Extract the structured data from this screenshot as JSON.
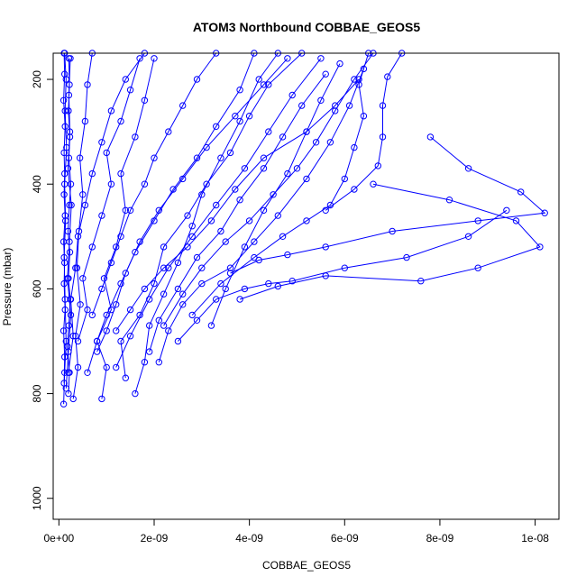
{
  "chart_data": {
    "type": "line",
    "title": "ATOM3 Northbound COBBAE_GEOS5",
    "xlabel": "COBBAE_GEOS5",
    "ylabel": "Pressure (mbar)",
    "xlim": [
      -1.2e-10,
      1.05e-08
    ],
    "ylim": [
      1040,
      150
    ],
    "y_reversed": true,
    "x_ticks": [
      0,
      2e-09,
      4e-09,
      6e-09,
      8e-09,
      1e-08
    ],
    "x_tick_labels": [
      "0e+00",
      "2e-09",
      "4e-09",
      "6e-09",
      "8e-09",
      "1e-08"
    ],
    "y_ticks": [
      200,
      400,
      600,
      800,
      1000
    ],
    "y_tick_labels": [
      "200",
      "400",
      "600",
      "800",
      "1000"
    ],
    "series_color": "#0000ff",
    "marker": "open-circle",
    "series": [
      {
        "points": [
          [
            1e-10,
            820
          ],
          [
            1.2e-10,
            760
          ],
          [
            1.5e-10,
            700
          ],
          [
            1.3e-10,
            620
          ],
          [
            1.1e-10,
            540
          ],
          [
            1.4e-10,
            470
          ],
          [
            1.2e-10,
            400
          ],
          [
            1.6e-10,
            330
          ],
          [
            1.3e-10,
            260
          ],
          [
            1.5e-10,
            200
          ],
          [
            1.2e-10,
            150
          ]
        ]
      },
      {
        "points": [
          [
            1.5e-10,
            790
          ],
          [
            2e-10,
            720
          ],
          [
            2.5e-10,
            650
          ],
          [
            1.8e-10,
            580
          ],
          [
            2.2e-10,
            510
          ],
          [
            2.6e-10,
            440
          ],
          [
            1.9e-10,
            370
          ],
          [
            2.3e-10,
            300
          ],
          [
            2.1e-10,
            230
          ],
          [
            2.4e-10,
            160
          ]
        ]
      },
      {
        "points": [
          [
            3e-10,
            810
          ],
          [
            4e-10,
            750
          ],
          [
            3.5e-10,
            690
          ],
          [
            4.5e-10,
            630
          ],
          [
            3.8e-10,
            560
          ],
          [
            4.2e-10,
            490
          ],
          [
            5e-10,
            420
          ],
          [
            4.4e-10,
            350
          ],
          [
            5.5e-10,
            280
          ],
          [
            6e-10,
            210
          ],
          [
            7e-10,
            150
          ]
        ]
      },
      {
        "points": [
          [
            9e-10,
            810
          ],
          [
            1e-09,
            750
          ],
          [
            8e-10,
            700
          ],
          [
            1.1e-09,
            640
          ],
          [
            9.5e-10,
            580
          ],
          [
            1.2e-09,
            520
          ],
          [
            1.4e-09,
            450
          ],
          [
            1.3e-09,
            380
          ],
          [
            1.6e-09,
            310
          ],
          [
            1.8e-09,
            240
          ],
          [
            2e-09,
            160
          ]
        ]
      },
      {
        "points": [
          [
            1.6e-09,
            800
          ],
          [
            1.8e-09,
            740
          ],
          [
            1.9e-09,
            670
          ],
          [
            2.2e-09,
            610
          ],
          [
            2.5e-09,
            550
          ],
          [
            2.8e-09,
            480
          ],
          [
            3e-09,
            420
          ],
          [
            3.4e-09,
            350
          ],
          [
            3.8e-09,
            280
          ],
          [
            4.2e-09,
            200
          ],
          [
            4.6e-09,
            150
          ]
        ]
      },
      {
        "points": [
          [
            2.1e-09,
            740
          ],
          [
            2.3e-09,
            680
          ],
          [
            2.6e-09,
            630
          ],
          [
            3e-09,
            590
          ],
          [
            3.6e-09,
            560
          ],
          [
            4.1e-09,
            510
          ],
          [
            4.6e-09,
            460
          ],
          [
            5.2e-09,
            390
          ],
          [
            5.7e-09,
            320
          ],
          [
            6.1e-09,
            250
          ],
          [
            6.4e-09,
            180
          ]
        ]
      },
      {
        "points": [
          [
            2.5e-09,
            700
          ],
          [
            2.9e-09,
            660
          ],
          [
            3.3e-09,
            620
          ],
          [
            3.9e-09,
            600
          ],
          [
            4.4e-09,
            590
          ],
          [
            4.9e-09,
            585
          ],
          [
            6e-09,
            560
          ],
          [
            7.3e-09,
            540
          ],
          [
            8.6e-09,
            500
          ],
          [
            9.4e-09,
            450
          ]
        ]
      },
      {
        "points": [
          [
            3.6e-09,
            570
          ],
          [
            4.2e-09,
            545
          ],
          [
            4.8e-09,
            535
          ],
          [
            5.6e-09,
            520
          ],
          [
            7e-09,
            490
          ],
          [
            8.8e-09,
            470
          ],
          [
            1.02e-08,
            455
          ],
          [
            9.7e-09,
            415
          ],
          [
            8.6e-09,
            370
          ],
          [
            7.8e-09,
            310
          ]
        ]
      },
      {
        "points": [
          [
            3.8e-09,
            620
          ],
          [
            4.6e-09,
            595
          ],
          [
            5.6e-09,
            575
          ],
          [
            7.6e-09,
            585
          ],
          [
            8.8e-09,
            560
          ],
          [
            1.01e-08,
            520
          ],
          [
            9.6e-09,
            470
          ],
          [
            8.2e-09,
            430
          ],
          [
            6.6e-09,
            400
          ]
        ]
      },
      {
        "points": [
          [
            5.6e-09,
            450
          ],
          [
            6.2e-09,
            410
          ],
          [
            6.7e-09,
            365
          ],
          [
            6.8e-09,
            310
          ],
          [
            6.8e-09,
            250
          ],
          [
            6.9e-09,
            195
          ],
          [
            7.2e-09,
            150
          ]
        ]
      },
      {
        "points": [
          [
            3.2e-09,
            670
          ],
          [
            3.5e-09,
            600
          ],
          [
            3.9e-09,
            520
          ],
          [
            4.3e-09,
            450
          ],
          [
            4.8e-09,
            380
          ],
          [
            5.2e-09,
            300
          ],
          [
            5.5e-09,
            240
          ],
          [
            5.9e-09,
            170
          ]
        ]
      },
      {
        "points": [
          [
            1.2e-09,
            750
          ],
          [
            1.5e-09,
            690
          ],
          [
            1.9e-09,
            620
          ],
          [
            2.3e-09,
            560
          ],
          [
            2.8e-09,
            500
          ],
          [
            3.3e-09,
            440
          ],
          [
            3.9e-09,
            370
          ],
          [
            4.4e-09,
            300
          ],
          [
            4.9e-09,
            230
          ],
          [
            5.5e-09,
            160
          ]
        ]
      },
      {
        "points": [
          [
            6e-10,
            760
          ],
          [
            8e-10,
            700
          ],
          [
            1e-09,
            650
          ],
          [
            1.3e-09,
            590
          ],
          [
            1.6e-09,
            530
          ],
          [
            2e-09,
            470
          ],
          [
            2.4e-09,
            410
          ],
          [
            2.9e-09,
            350
          ],
          [
            3.3e-09,
            290
          ],
          [
            3.8e-09,
            220
          ],
          [
            4.1e-09,
            150
          ]
        ]
      },
      {
        "points": [
          [
            4e-10,
            700
          ],
          [
            6e-10,
            640
          ],
          [
            5e-10,
            580
          ],
          [
            7e-10,
            520
          ],
          [
            9e-10,
            460
          ],
          [
            1.1e-09,
            400
          ],
          [
            1e-09,
            340
          ],
          [
            1.3e-09,
            280
          ],
          [
            1.5e-09,
            220
          ],
          [
            1.7e-09,
            160
          ]
        ]
      },
      {
        "points": [
          [
            2.2e-09,
            670
          ],
          [
            2.6e-09,
            610
          ],
          [
            3e-09,
            560
          ],
          [
            3.5e-09,
            510
          ],
          [
            4e-09,
            470
          ],
          [
            4.5e-09,
            420
          ],
          [
            5e-09,
            370
          ],
          [
            5.4e-09,
            320
          ],
          [
            5.8e-09,
            260
          ],
          [
            6.2e-09,
            200
          ],
          [
            6.6e-09,
            150
          ]
        ]
      },
      {
        "points": [
          [
            1.9e-09,
            720
          ],
          [
            2.1e-09,
            660
          ],
          [
            2.5e-09,
            600
          ],
          [
            2.9e-09,
            540
          ],
          [
            3.4e-09,
            490
          ],
          [
            3.8e-09,
            430
          ],
          [
            4.3e-09,
            370
          ],
          [
            4.7e-09,
            310
          ],
          [
            5.1e-09,
            250
          ],
          [
            5.6e-09,
            190
          ]
        ]
      },
      {
        "points": [
          [
            1.4e-09,
            770
          ],
          [
            1.3e-09,
            700
          ],
          [
            1.7e-09,
            650
          ],
          [
            2e-09,
            590
          ],
          [
            2.2e-09,
            520
          ],
          [
            2.7e-09,
            460
          ],
          [
            3.1e-09,
            400
          ],
          [
            3.6e-09,
            340
          ],
          [
            4e-09,
            270
          ],
          [
            4.4e-09,
            210
          ],
          [
            5.1e-09,
            150
          ]
        ]
      },
      {
        "points": [
          [
            2e-10,
            760
          ],
          [
            3e-10,
            690
          ],
          [
            2.5e-10,
            620
          ],
          [
            3.5e-10,
            560
          ],
          [
            4e-10,
            500
          ],
          [
            5.5e-10,
            440
          ],
          [
            7e-10,
            380
          ],
          [
            9e-10,
            320
          ],
          [
            1.1e-09,
            260
          ],
          [
            1.4e-09,
            200
          ],
          [
            1.8e-09,
            150
          ]
        ]
      },
      {
        "points": [
          [
            8e-10,
            720
          ],
          [
            1e-09,
            680
          ],
          [
            1.2e-09,
            630
          ],
          [
            1.4e-09,
            570
          ],
          [
            1.7e-09,
            510
          ],
          [
            2.1e-09,
            450
          ],
          [
            2.6e-09,
            390
          ],
          [
            3.1e-09,
            330
          ],
          [
            3.7e-09,
            270
          ],
          [
            4.3e-09,
            210
          ],
          [
            4.8e-09,
            160
          ]
        ]
      },
      {
        "points": [
          [
            2.8e-09,
            650
          ],
          [
            3.4e-09,
            590
          ],
          [
            4.1e-09,
            540
          ],
          [
            4.7e-09,
            500
          ],
          [
            5.2e-09,
            470
          ],
          [
            5.7e-09,
            440
          ],
          [
            6e-09,
            390
          ],
          [
            6.2e-09,
            330
          ],
          [
            6.4e-09,
            270
          ],
          [
            6.3e-09,
            210
          ],
          [
            6.5e-09,
            150
          ]
        ]
      },
      {
        "points": [
          [
            1.1e-10,
            780
          ],
          [
            1.2e-10,
            730
          ],
          [
            1e-10,
            680
          ],
          [
            1.3e-10,
            640
          ],
          [
            1.1e-10,
            590
          ],
          [
            1.2e-10,
            550
          ],
          [
            1e-10,
            510
          ],
          [
            1.3e-10,
            460
          ],
          [
            1.1e-10,
            420
          ],
          [
            1.2e-10,
            380
          ],
          [
            1.1e-10,
            340
          ],
          [
            1.3e-10,
            290
          ],
          [
            1e-10,
            240
          ],
          [
            1.2e-10,
            190
          ],
          [
            1.1e-10,
            150
          ]
        ]
      },
      {
        "points": [
          [
            2e-10,
            800
          ],
          [
            2.2e-10,
            760
          ],
          [
            1.8e-10,
            710
          ],
          [
            2.1e-10,
            670
          ],
          [
            2.4e-10,
            620
          ],
          [
            2e-10,
            580
          ],
          [
            2.3e-10,
            530
          ],
          [
            1.9e-10,
            490
          ],
          [
            2.2e-10,
            440
          ],
          [
            2.5e-10,
            400
          ],
          [
            2.1e-10,
            350
          ],
          [
            2.3e-10,
            310
          ],
          [
            2e-10,
            260
          ],
          [
            2.2e-10,
            210
          ],
          [
            2.1e-10,
            160
          ]
        ]
      },
      {
        "points": [
          [
            1.2e-09,
            680
          ],
          [
            1.5e-09,
            640
          ],
          [
            1.8e-09,
            600
          ],
          [
            2.2e-09,
            560
          ],
          [
            2.7e-09,
            520
          ],
          [
            3.2e-09,
            470
          ],
          [
            3.7e-09,
            410
          ],
          [
            4.3e-09,
            350
          ],
          [
            5.2e-09,
            300
          ],
          [
            5.8e-09,
            250
          ],
          [
            6.3e-09,
            200
          ]
        ]
      },
      {
        "points": [
          [
            7e-10,
            650
          ],
          [
            9e-10,
            600
          ],
          [
            1.1e-09,
            550
          ],
          [
            1.3e-09,
            500
          ],
          [
            1.5e-09,
            450
          ],
          [
            1.8e-09,
            400
          ],
          [
            2e-09,
            350
          ],
          [
            2.3e-09,
            300
          ],
          [
            2.6e-09,
            250
          ],
          [
            2.9e-09,
            200
          ],
          [
            3.3e-09,
            150
          ]
        ]
      }
    ]
  }
}
